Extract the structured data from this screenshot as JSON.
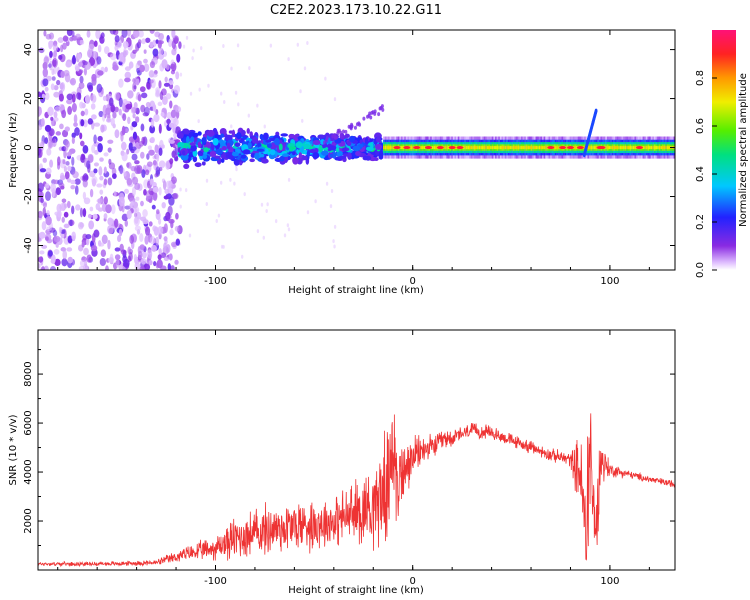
{
  "figure_title": "C2E2.2023.173.10.22.G11",
  "chart_data": [
    {
      "type": "heatmap",
      "title": "",
      "xlabel": "Height of straight line (km)",
      "ylabel": "Frequency (Hz)",
      "xlim": [
        -190,
        133
      ],
      "ylim": [
        -50,
        48
      ],
      "xticks": [
        -100,
        0,
        100
      ],
      "yticks": [
        -40,
        -20,
        0,
        20,
        40
      ],
      "colorbar": {
        "label": "Normalized spectral amplitude",
        "range": [
          0.0,
          1.0
        ],
        "ticks": [
          0.0,
          0.2,
          0.4,
          0.6,
          0.8
        ],
        "tick_labels": [
          "0.0",
          "0.2",
          "0.4",
          "0.6",
          "0.8"
        ]
      },
      "regions": [
        {
          "name": "noise",
          "x_range": [
            -190,
            -118
          ],
          "freq_range": [
            -50,
            48
          ],
          "amplitude": 0.05
        },
        {
          "name": "ionosphere-scatter",
          "x_range": [
            -118,
            -15
          ],
          "freq_range": [
            -8,
            8
          ],
          "amplitude": 0.25
        },
        {
          "name": "direct-signal",
          "x_range": [
            -15,
            133
          ],
          "freq_range": [
            -2,
            2
          ],
          "amplitude": 0.9
        },
        {
          "name": "spike",
          "x_range": [
            85,
            95
          ],
          "freq_range": [
            -5,
            17
          ],
          "amplitude": 0.3
        }
      ]
    },
    {
      "type": "line",
      "title": "",
      "xlabel": "Height of straight line (km)",
      "ylabel": "SNR (10 * v/v)",
      "xlim": [
        -190,
        133
      ],
      "ylim": [
        0,
        9800
      ],
      "xticks": [
        -100,
        0,
        100
      ],
      "yticks": [
        2000,
        4000,
        6000,
        8000
      ],
      "series_color": "#ee3333",
      "series": [
        {
          "name": "SNR",
          "x": [
            -190,
            -170,
            -150,
            -130,
            -115,
            -100,
            -90,
            -80,
            -70,
            -60,
            -50,
            -40,
            -30,
            -20,
            -15,
            -10,
            -5,
            0,
            5,
            10,
            15,
            20,
            30,
            40,
            50,
            60,
            70,
            80,
            85,
            88,
            90,
            93,
            95,
            100,
            110,
            120,
            133
          ],
          "y": [
            250,
            250,
            260,
            300,
            650,
            900,
            1300,
            1500,
            1700,
            1800,
            1900,
            2000,
            2300,
            2700,
            3200,
            3700,
            3800,
            4600,
            4900,
            5000,
            5300,
            5400,
            5700,
            5600,
            5300,
            5000,
            4700,
            4500,
            4000,
            1000,
            3600,
            1500,
            4500,
            4100,
            3900,
            3700,
            3500
          ],
          "noise_amplitude": [
            80,
            80,
            90,
            120,
            300,
            500,
            900,
            1000,
            1100,
            1100,
            1100,
            1000,
            1300,
            1700,
            2200,
            2000,
            1500,
            800,
            600,
            500,
            400,
            350,
            300,
            280,
            260,
            260,
            260,
            300,
            1600,
            2500,
            2500,
            1500,
            1200,
            300,
            150,
            150,
            150
          ]
        }
      ]
    }
  ]
}
